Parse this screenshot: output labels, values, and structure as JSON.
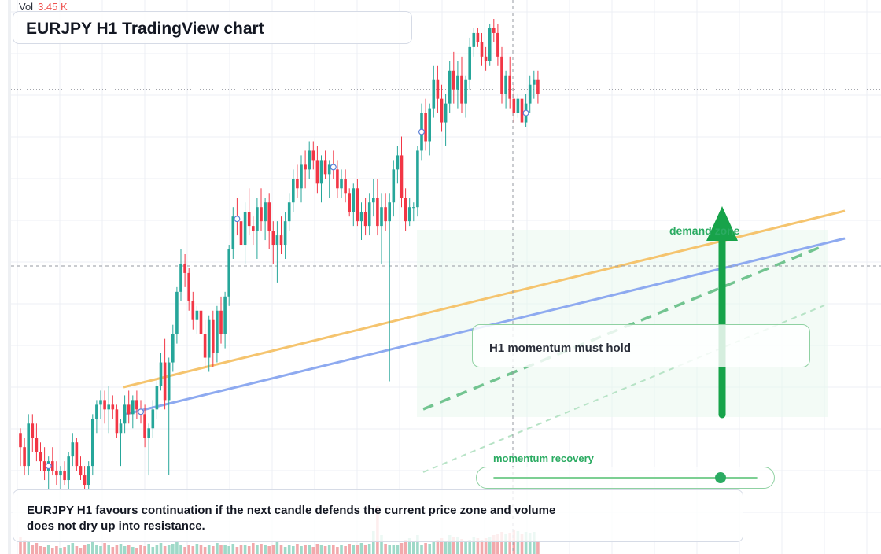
{
  "header": {
    "vol_label": "Vol",
    "vol_value": "3.45 K",
    "title": "EURJPY H1 TradingView chart"
  },
  "annotations": {
    "callout": "H1 momentum must hold",
    "zone_label": "demand zone",
    "momentum_label": "momentum recovery",
    "momentum_level": 0.86,
    "note": "EURJPY H1 favours continuation if the next candle defends the current price zone and volume does not dry up into resistance."
  },
  "colors": {
    "bull": "#26a69a",
    "bear": "#f23645",
    "bull_volume": "#9fd9c8",
    "bear_volume": "#f2a9ac",
    "trend_orange": "#f5c46e",
    "trend_blue": "#8eaaf0",
    "accent_green": "#2bab62",
    "grid": "#eceff4"
  },
  "chart_data": {
    "type": "candlestick",
    "series_name": "EURJPY",
    "timeframe": "H1",
    "grid": true,
    "ylim": [
      0,
      100
    ],
    "volume_ylim": [
      0,
      100
    ],
    "candles": [
      [
        12,
        13,
        5,
        9
      ],
      [
        9,
        11,
        3,
        5
      ],
      [
        5,
        16,
        3,
        14
      ],
      [
        14,
        16,
        8,
        11
      ],
      [
        11,
        14,
        6,
        8
      ],
      [
        8,
        10,
        4,
        6
      ],
      [
        6,
        9,
        2,
        4
      ],
      [
        4,
        7,
        0,
        6
      ],
      [
        6,
        9,
        3,
        4
      ],
      [
        4,
        6,
        1,
        3
      ],
      [
        3,
        5,
        0,
        4
      ],
      [
        4,
        6,
        1,
        2
      ],
      [
        2,
        8,
        0,
        7
      ],
      [
        7,
        12,
        5,
        10
      ],
      [
        10,
        11,
        4,
        5
      ],
      [
        5,
        7,
        2,
        3
      ],
      [
        3,
        5,
        0,
        1
      ],
      [
        1,
        6,
        0,
        5
      ],
      [
        5,
        16,
        3,
        15
      ],
      [
        15,
        19,
        12,
        18
      ],
      [
        18,
        21,
        15,
        19
      ],
      [
        19,
        21,
        14,
        17
      ],
      [
        17,
        22,
        12,
        18
      ],
      [
        18,
        20,
        15,
        17
      ],
      [
        17,
        18,
        11,
        12
      ],
      [
        12,
        15,
        5,
        14
      ],
      [
        14,
        20,
        12,
        18
      ],
      [
        18,
        21,
        14,
        16
      ],
      [
        16,
        20,
        13,
        19
      ],
      [
        19,
        21,
        15,
        17
      ],
      [
        17,
        19,
        14,
        16
      ],
      [
        16,
        18,
        9,
        11
      ],
      [
        11,
        14,
        3,
        13
      ],
      [
        13,
        19,
        11,
        17
      ],
      [
        17,
        23,
        15,
        22
      ],
      [
        22,
        29,
        21,
        27
      ],
      [
        27,
        32,
        17,
        19
      ],
      [
        19,
        28,
        3,
        27
      ],
      [
        27,
        35,
        25,
        33
      ],
      [
        33,
        43,
        31,
        42
      ],
      [
        42,
        51,
        40,
        48
      ],
      [
        48,
        50,
        43,
        46
      ],
      [
        46,
        47,
        38,
        40
      ],
      [
        40,
        42,
        34,
        36
      ],
      [
        36,
        39,
        33,
        38
      ],
      [
        38,
        41,
        31,
        33
      ],
      [
        33,
        36,
        26,
        28
      ],
      [
        28,
        37,
        25,
        36
      ],
      [
        36,
        38,
        26,
        29
      ],
      [
        29,
        39,
        27,
        38
      ],
      [
        38,
        41,
        31,
        33
      ],
      [
        33,
        42,
        30,
        41
      ],
      [
        41,
        52,
        39,
        51
      ],
      [
        51,
        60,
        49,
        58
      ],
      [
        58,
        62,
        54,
        57
      ],
      [
        57,
        60,
        50,
        52
      ],
      [
        52,
        61,
        48,
        59
      ],
      [
        59,
        64,
        54,
        56
      ],
      [
        56,
        58,
        52,
        55
      ],
      [
        55,
        62,
        49,
        60
      ],
      [
        60,
        64,
        55,
        57
      ],
      [
        57,
        62,
        53,
        61
      ],
      [
        61,
        63,
        51,
        55
      ],
      [
        55,
        57,
        48,
        52
      ],
      [
        52,
        57,
        44,
        54
      ],
      [
        54,
        58,
        50,
        52
      ],
      [
        52,
        59,
        49,
        57
      ],
      [
        57,
        63,
        55,
        61
      ],
      [
        61,
        68,
        59,
        66
      ],
      [
        66,
        69,
        62,
        64
      ],
      [
        64,
        71,
        61,
        69
      ],
      [
        69,
        72,
        64,
        68
      ],
      [
        68,
        74,
        66,
        72
      ],
      [
        72,
        74,
        68,
        70
      ],
      [
        70,
        73,
        63,
        65
      ],
      [
        65,
        71,
        61,
        70
      ],
      [
        70,
        72,
        66,
        67
      ],
      [
        67,
        70,
        62,
        69
      ],
      [
        69,
        72,
        66,
        68
      ],
      [
        68,
        70,
        62,
        64
      ],
      [
        64,
        68,
        62,
        66
      ],
      [
        66,
        68,
        61,
        63
      ],
      [
        63,
        64,
        58,
        59
      ],
      [
        59,
        65,
        56,
        64
      ],
      [
        64,
        66,
        56,
        57
      ],
      [
        57,
        61,
        53,
        59
      ],
      [
        59,
        62,
        54,
        56
      ],
      [
        56,
        63,
        54,
        61
      ],
      [
        61,
        66,
        58,
        62
      ],
      [
        62,
        66,
        54,
        56
      ],
      [
        56,
        63,
        48,
        60
      ],
      [
        60,
        63,
        55,
        57
      ],
      [
        57,
        63,
        23,
        61
      ],
      [
        61,
        70,
        58,
        68
      ],
      [
        68,
        73,
        65,
        71
      ],
      [
        71,
        75,
        60,
        62
      ],
      [
        62,
        64,
        55,
        57
      ],
      [
        57,
        62,
        56,
        60
      ],
      [
        60,
        61,
        57,
        60
      ],
      [
        60,
        73,
        58,
        72
      ],
      [
        72,
        82,
        70,
        80
      ],
      [
        80,
        83,
        72,
        74
      ],
      [
        74,
        82,
        71,
        81
      ],
      [
        81,
        90,
        79,
        87
      ],
      [
        87,
        90,
        80,
        83
      ],
      [
        83,
        86,
        76,
        78
      ],
      [
        78,
        84,
        73,
        82
      ],
      [
        82,
        91,
        80,
        89
      ],
      [
        89,
        93,
        82,
        85
      ],
      [
        85,
        91,
        81,
        88
      ],
      [
        88,
        92,
        80,
        82
      ],
      [
        82,
        88,
        79,
        87
      ],
      [
        87,
        96,
        85,
        94
      ],
      [
        94,
        98,
        92,
        97
      ],
      [
        97,
        98,
        94,
        95
      ],
      [
        95,
        97,
        90,
        92
      ],
      [
        92,
        94,
        89,
        91
      ],
      [
        91,
        99,
        90,
        98
      ],
      [
        98,
        100,
        95,
        97
      ],
      [
        97,
        99,
        90,
        92
      ],
      [
        92,
        94,
        82,
        84
      ],
      [
        84,
        89,
        81,
        88
      ],
      [
        88,
        92,
        81,
        83
      ],
      [
        83,
        86,
        78,
        80
      ],
      [
        80,
        84,
        79,
        83
      ],
      [
        83,
        86,
        76,
        78
      ],
      [
        78,
        84,
        77,
        82
      ],
      [
        82,
        88,
        80,
        86
      ],
      [
        86,
        89,
        83,
        87
      ],
      [
        87,
        89,
        82,
        84
      ]
    ],
    "volume": [
      22,
      18,
      15,
      12,
      14,
      10,
      9,
      11,
      8,
      10,
      7,
      9,
      12,
      14,
      10,
      8,
      11,
      13,
      15,
      12,
      10,
      14,
      12,
      9,
      11,
      13,
      10,
      12,
      9,
      8,
      11,
      10,
      13,
      9,
      12,
      14,
      10,
      12,
      13,
      15,
      11,
      9,
      12,
      10,
      13,
      11,
      9,
      12,
      10,
      14,
      12,
      11,
      10,
      13,
      9,
      12,
      11,
      10,
      14,
      12,
      13,
      11,
      10,
      12,
      15,
      11,
      9,
      12,
      10,
      13,
      10,
      12,
      11,
      9,
      13,
      12,
      10,
      11,
      12,
      9,
      12,
      10,
      13,
      11,
      12,
      14,
      12,
      13,
      29,
      61,
      24,
      13,
      12,
      11,
      12,
      14,
      18,
      20,
      16,
      24,
      12,
      14,
      13,
      16,
      18,
      20,
      17,
      24,
      22,
      21,
      19,
      16,
      18,
      22,
      20,
      18,
      20,
      22,
      24,
      26,
      28,
      25,
      27,
      30,
      29,
      26,
      28,
      27,
      28,
      16
    ]
  }
}
